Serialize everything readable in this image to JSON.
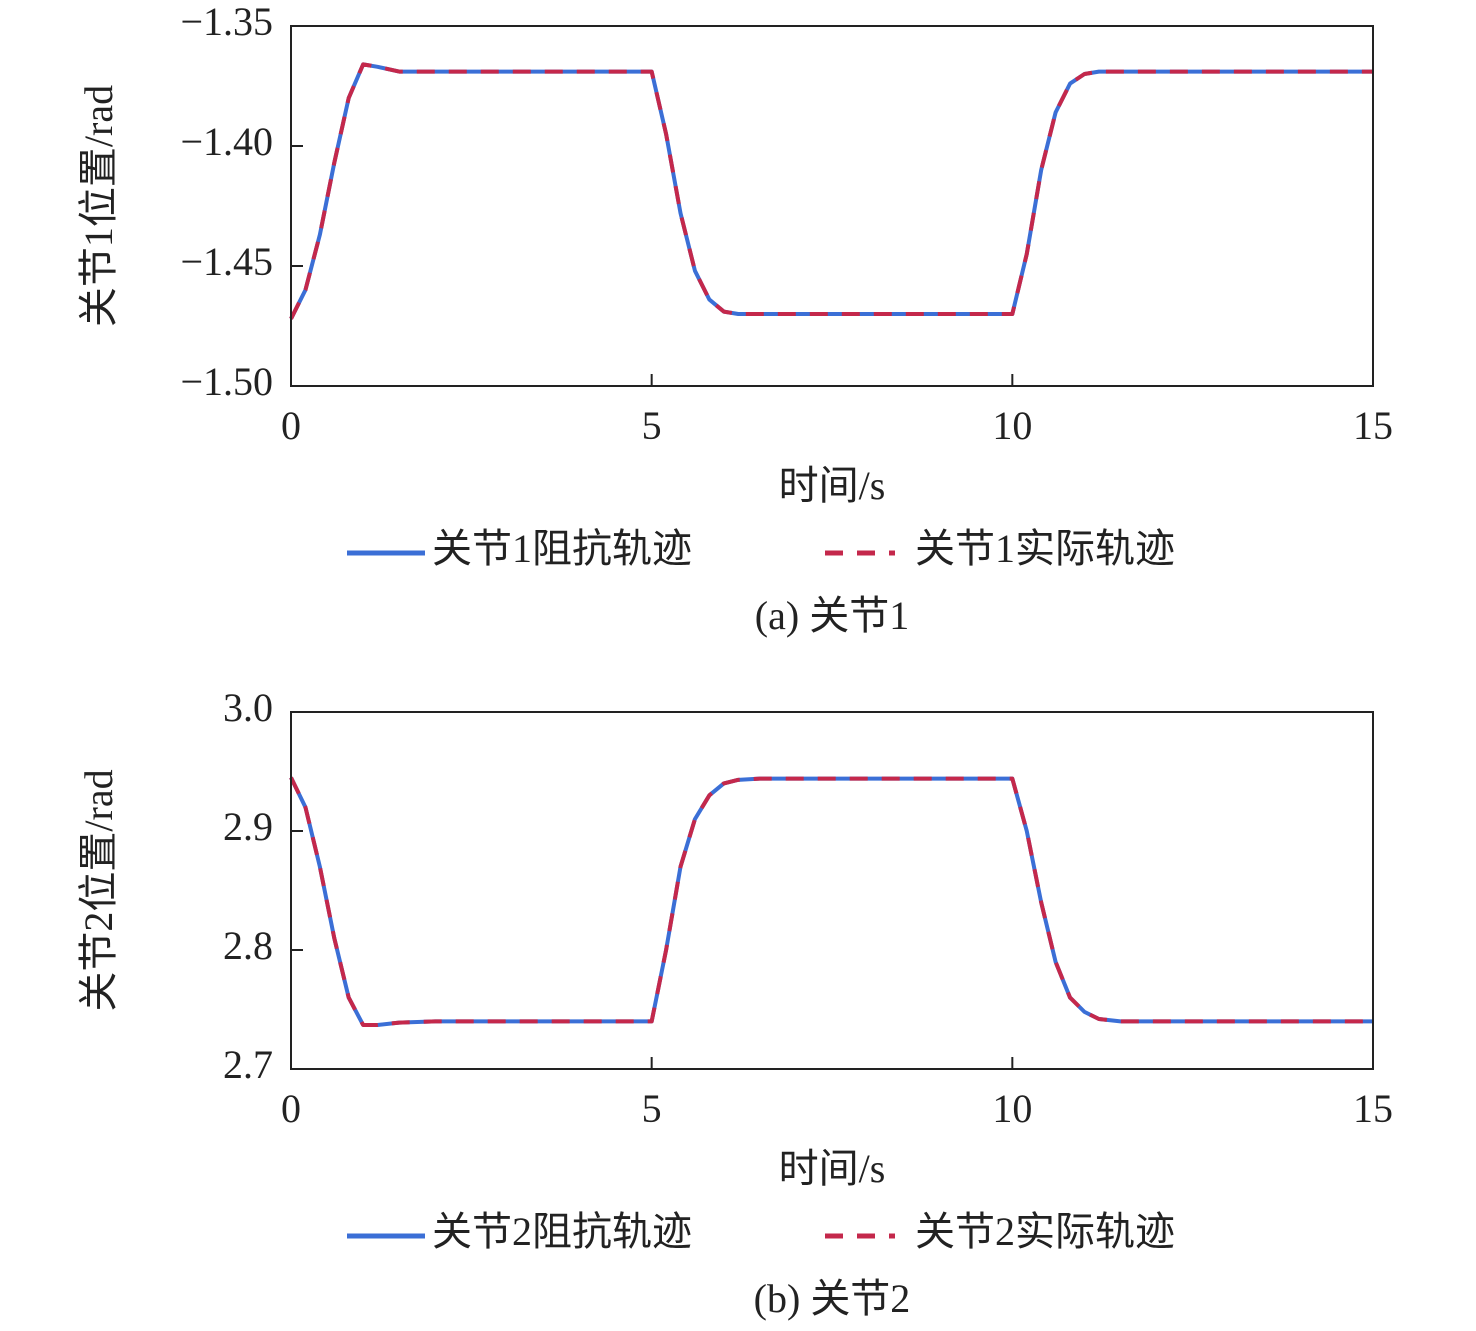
{
  "chart_data": [
    {
      "type": "line",
      "caption": "(a) 关节1",
      "x_label": "时间/s",
      "y_label": "关节1位置/rad",
      "x": [
        0,
        0.2,
        0.4,
        0.6,
        0.8,
        1.0,
        1.2,
        1.5,
        2,
        3,
        4,
        5,
        5.2,
        5.4,
        5.6,
        5.8,
        6.0,
        6.2,
        6.5,
        7,
        8,
        9,
        10,
        10.2,
        10.4,
        10.6,
        10.8,
        11,
        11.2,
        11.5,
        12,
        13,
        14,
        15
      ],
      "series": [
        {
          "name": "关节1阻抗轨迹",
          "color": "#3b6fd6",
          "line_style": "solid",
          "values": [
            -1.472,
            -1.46,
            -1.437,
            -1.407,
            -1.38,
            -1.366,
            -1.367,
            -1.369,
            -1.369,
            -1.369,
            -1.369,
            -1.369,
            -1.395,
            -1.428,
            -1.452,
            -1.464,
            -1.469,
            -1.47,
            -1.47,
            -1.47,
            -1.47,
            -1.47,
            -1.47,
            -1.445,
            -1.41,
            -1.386,
            -1.374,
            -1.37,
            -1.369,
            -1.369,
            -1.369,
            -1.369,
            -1.369,
            -1.369
          ]
        },
        {
          "name": "关节1实际轨迹",
          "color": "#c4284b",
          "line_style": "dashed",
          "values": [
            -1.472,
            -1.46,
            -1.437,
            -1.407,
            -1.38,
            -1.366,
            -1.367,
            -1.369,
            -1.369,
            -1.369,
            -1.369,
            -1.369,
            -1.395,
            -1.428,
            -1.452,
            -1.464,
            -1.469,
            -1.47,
            -1.47,
            -1.47,
            -1.47,
            -1.47,
            -1.47,
            -1.445,
            -1.41,
            -1.386,
            -1.374,
            -1.37,
            -1.369,
            -1.369,
            -1.369,
            -1.369,
            -1.369,
            -1.369
          ]
        }
      ],
      "xlim": [
        0,
        15
      ],
      "xticks": [
        0,
        5,
        10,
        15
      ],
      "ylim": [
        -1.5,
        -1.35
      ],
      "yticks": [
        {
          "value": -1.5,
          "label": "−1.50"
        },
        {
          "value": -1.45,
          "label": "−1.45"
        },
        {
          "value": -1.4,
          "label": "−1.40"
        },
        {
          "value": -1.35,
          "label": "−1.35"
        }
      ]
    },
    {
      "type": "line",
      "caption": "(b) 关节2",
      "x_label": "时间/s",
      "y_label": "关节2位置/rad",
      "x": [
        0,
        0.2,
        0.4,
        0.6,
        0.8,
        1.0,
        1.2,
        1.5,
        2,
        3,
        4,
        5,
        5.2,
        5.4,
        5.6,
        5.8,
        6.0,
        6.2,
        6.5,
        7,
        8,
        9,
        10,
        10.2,
        10.4,
        10.6,
        10.8,
        11,
        11.2,
        11.5,
        12,
        13,
        14,
        15
      ],
      "series": [
        {
          "name": "关节2阻抗轨迹",
          "color": "#3b6fd6",
          "line_style": "solid",
          "values": [
            2.945,
            2.92,
            2.87,
            2.81,
            2.76,
            2.737,
            2.737,
            2.739,
            2.74,
            2.74,
            2.74,
            2.74,
            2.8,
            2.87,
            2.91,
            2.93,
            2.94,
            2.943,
            2.944,
            2.944,
            2.944,
            2.944,
            2.944,
            2.9,
            2.84,
            2.79,
            2.76,
            2.748,
            2.742,
            2.74,
            2.74,
            2.74,
            2.74,
            2.74
          ]
        },
        {
          "name": "关节2实际轨迹",
          "color": "#c4284b",
          "line_style": "dashed",
          "values": [
            2.945,
            2.92,
            2.87,
            2.81,
            2.76,
            2.737,
            2.737,
            2.739,
            2.74,
            2.74,
            2.74,
            2.74,
            2.8,
            2.87,
            2.91,
            2.93,
            2.94,
            2.943,
            2.944,
            2.944,
            2.944,
            2.944,
            2.944,
            2.9,
            2.84,
            2.79,
            2.76,
            2.748,
            2.742,
            2.74,
            2.74,
            2.74,
            2.74,
            2.74
          ]
        }
      ],
      "xlim": [
        0,
        15
      ],
      "xticks": [
        0,
        5,
        10,
        15
      ],
      "ylim": [
        2.7,
        3
      ],
      "yticks": [
        2.7,
        2.8,
        2.9,
        {
          "value": 3,
          "label": "3.0"
        }
      ]
    }
  ]
}
